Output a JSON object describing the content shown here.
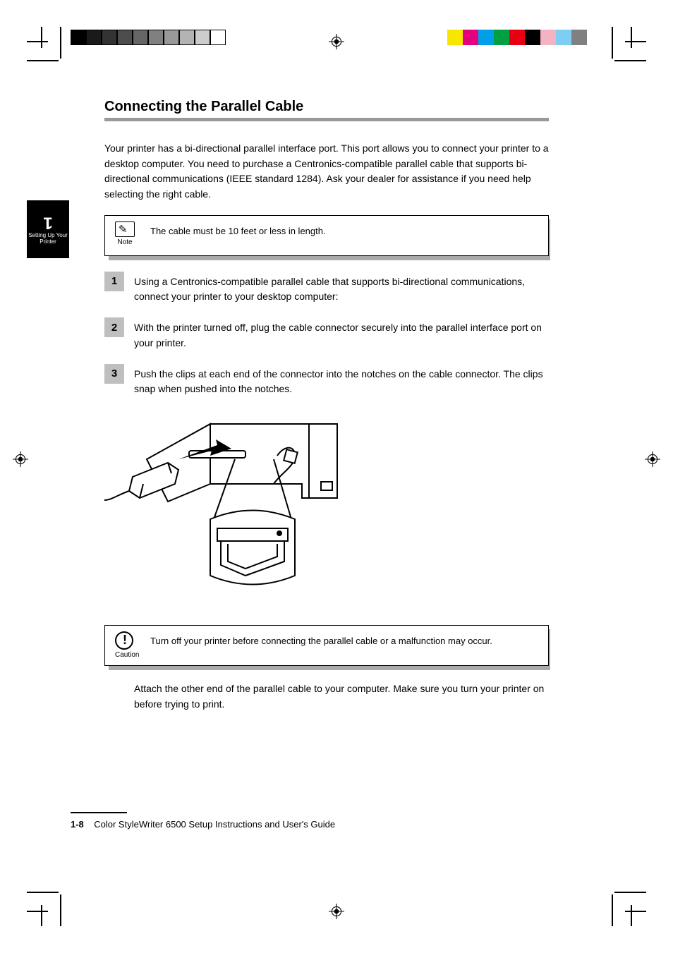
{
  "print_marks": {
    "grayscale_steps": [
      "#000000",
      "#1a1a1a",
      "#333333",
      "#4d4d4d",
      "#666666",
      "#808080",
      "#999999",
      "#b3b3b3",
      "#cccccc",
      "#ffffff"
    ],
    "color_steps": [
      "#f7e600",
      "#e4007f",
      "#009fe8",
      "#00a040",
      "#e60012",
      "#000000",
      "#f4b3c2",
      "#7ecef4",
      "#808080",
      "#ffffff"
    ]
  },
  "side_tab": {
    "chapter_number": "1",
    "label": "Setting Up Your Printer"
  },
  "section": {
    "title": "Connecting the Parallel Cable",
    "intro": "Your printer has a bi-directional parallel interface port. This port allows you to connect your printer to a desktop computer. You need to purchase a Centronics-compatible parallel cable that supports bi-directional communications (IEEE standard 1284). Ask your dealer for assistance if you need help selecting the right cable."
  },
  "note_box": {
    "label": "Note",
    "text": "The cable must be 10 feet or less in length."
  },
  "steps": [
    {
      "num": "1",
      "text": "Using a Centronics-compatible parallel cable that supports bi-directional communications, connect your printer to your desktop computer:"
    },
    {
      "num": "2",
      "text": "With the printer turned off, plug the cable connector securely into the parallel interface port on your printer."
    },
    {
      "num": "3",
      "text": "Push the clips at each end of the connector into the notches on the cable connector. The clips snap when pushed into the notches."
    }
  ],
  "caution_box": {
    "label": "Caution",
    "text": "Turn off your printer before connecting the parallel cable or a malfunction may occur."
  },
  "post_caution": "Attach the other end of the parallel cable to your computer. Make sure you turn your printer on before trying to print.",
  "footer": {
    "page": "1-8",
    "book": "Color StyleWriter 6500 Setup Instructions and User's Guide"
  },
  "figure": {
    "stroke": "#000000",
    "fill": "#ffffff"
  }
}
